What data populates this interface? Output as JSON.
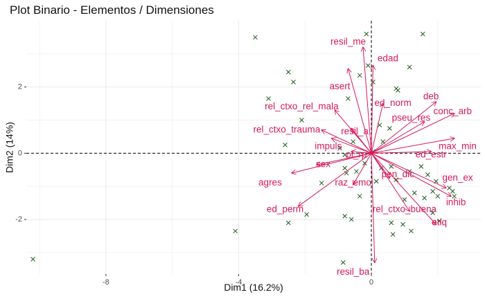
{
  "chart_data": {
    "type": "scatter",
    "title": "Plot Binario - Elementos / Dimensiones",
    "xlabel": "Dim1 (16.2%)",
    "ylabel": "Dim2 (14%)",
    "xlim": [
      -10.4,
      3.3
    ],
    "ylim": [
      -3.65,
      4.0
    ],
    "x_ticks": [
      -8,
      -4,
      0
    ],
    "y_ticks": [
      -2,
      0,
      2
    ],
    "grid": true,
    "reference_lines": {
      "x": 0,
      "y": 0,
      "style": "dashed"
    },
    "colors": {
      "points": "#1a5c1a",
      "arrows": "#d6185a",
      "grid": "#ebebeb",
      "reference": "#000000"
    },
    "individuals": [
      {
        "x": -10.2,
        "y": -3.2
      },
      {
        "x": -4.1,
        "y": -2.35
      },
      {
        "x": -3.5,
        "y": 3.5
      },
      {
        "x": -2.5,
        "y": 2.45
      },
      {
        "x": -2.35,
        "y": 2.15
      },
      {
        "x": -3.1,
        "y": 1.65
      },
      {
        "x": -2.1,
        "y": 1.0
      },
      {
        "x": -2.6,
        "y": 0.25
      },
      {
        "x": -2.5,
        "y": -2.1
      },
      {
        "x": -1.95,
        "y": -1.85
      },
      {
        "x": -1.5,
        "y": -0.9
      },
      {
        "x": -0.8,
        "y": -0.45
      },
      {
        "x": -0.35,
        "y": 2.35
      },
      {
        "x": -0.7,
        "y": 1.65
      },
      {
        "x": -0.15,
        "y": 3.6
      },
      {
        "x": -0.1,
        "y": 2.65
      },
      {
        "x": 0.05,
        "y": 2.15
      },
      {
        "x": 0.75,
        "y": 1.95
      },
      {
        "x": 0.8,
        "y": 1.9
      },
      {
        "x": 1.15,
        "y": 2.6
      },
      {
        "x": 1.55,
        "y": 3.6
      },
      {
        "x": -0.8,
        "y": -0.05
      },
      {
        "x": -0.55,
        "y": 0.35
      },
      {
        "x": -0.95,
        "y": 0.15
      },
      {
        "x": -0.2,
        "y": -0.3
      },
      {
        "x": -0.45,
        "y": -0.55
      },
      {
        "x": -0.75,
        "y": -0.6
      },
      {
        "x": -0.35,
        "y": -1.3
      },
      {
        "x": -0.8,
        "y": -1.9
      },
      {
        "x": -0.6,
        "y": -2.0
      },
      {
        "x": -0.85,
        "y": -3.3
      },
      {
        "x": 0.3,
        "y": -0.45
      },
      {
        "x": 0.6,
        "y": -0.4
      },
      {
        "x": 0.75,
        "y": -0.8
      },
      {
        "x": 1.15,
        "y": -0.55
      },
      {
        "x": 1.5,
        "y": -0.4
      },
      {
        "x": 1.3,
        "y": -1.2
      },
      {
        "x": 1.7,
        "y": -0.65
      },
      {
        "x": 1.95,
        "y": -0.85
      },
      {
        "x": 1.0,
        "y": -1.4
      },
      {
        "x": 1.6,
        "y": -1.35
      },
      {
        "x": 1.85,
        "y": -1.15
      },
      {
        "x": 2.0,
        "y": -1.3
      },
      {
        "x": 2.45,
        "y": -1.15
      },
      {
        "x": 2.35,
        "y": -1.05
      },
      {
        "x": 2.05,
        "y": -2.05
      },
      {
        "x": 1.85,
        "y": -1.8
      },
      {
        "x": 0.95,
        "y": -2.15
      },
      {
        "x": 0.6,
        "y": -2.1
      },
      {
        "x": 1.2,
        "y": -2.35
      },
      {
        "x": 0.65,
        "y": -2.45
      },
      {
        "x": 0.15,
        "y": -0.85
      },
      {
        "x": 0.25,
        "y": 0.85
      },
      {
        "x": 0.55,
        "y": 0.75
      },
      {
        "x": 0.35,
        "y": 0.35
      },
      {
        "x": 0.05,
        "y": 0.05
      },
      {
        "x": 2.5,
        "y": -1.3
      }
    ],
    "variables": [
      {
        "name": "resil_me",
        "x": -0.25,
        "y": 3.2,
        "label_x": -0.7,
        "label_y": 3.35
      },
      {
        "name": "edad",
        "x": 0.05,
        "y": 2.65,
        "label_x": 0.5,
        "label_y": 2.85
      },
      {
        "name": "asert",
        "x": -0.7,
        "y": 2.55,
        "label_x": -0.95,
        "label_y": 2.0
      },
      {
        "name": "ed_norm",
        "x": 0.35,
        "y": 1.5,
        "label_x": 0.65,
        "label_y": 1.5
      },
      {
        "name": "deb",
        "x": 1.95,
        "y": 1.55,
        "label_x": 1.8,
        "label_y": 1.7
      },
      {
        "name": "conc_arb",
        "x": 2.5,
        "y": 1.2,
        "label_x": 2.45,
        "label_y": 1.25
      },
      {
        "name": "pseu_res",
        "x": 1.6,
        "y": 0.95,
        "label_x": 1.2,
        "label_y": 1.05
      },
      {
        "name": "rel_ctxo_rel_mala",
        "x": -1.1,
        "y": 1.3,
        "label_x": -2.1,
        "label_y": 1.4
      },
      {
        "name": "rel_ctxo_trauma",
        "x": -1.5,
        "y": 0.7,
        "label_x": -2.55,
        "label_y": 0.7
      },
      {
        "name": "resil_a",
        "x": -0.6,
        "y": 0.75,
        "label_x": -0.5,
        "label_y": 0.65
      },
      {
        "name": "max_min",
        "x": 2.5,
        "y": 0.45,
        "label_x": 2.6,
        "label_y": 0.2
      },
      {
        "name": "ed_estr",
        "x": 1.8,
        "y": 0.05,
        "label_x": 1.8,
        "label_y": -0.05
      },
      {
        "name": "impuls",
        "x": -1.2,
        "y": 0.45,
        "label_x": -1.3,
        "label_y": 0.2
      },
      {
        "name": "pl_rp",
        "x": -0.6,
        "y": 0.05,
        "label_x": -0.45,
        "label_y": -0.05
      },
      {
        "name": "sex",
        "x": -1.65,
        "y": -0.35,
        "label_x": -1.45,
        "label_y": -0.35
      },
      {
        "name": "agres",
        "x": -2.4,
        "y": -0.6,
        "label_x": -3.05,
        "label_y": -0.9
      },
      {
        "name": "raz_emo",
        "x": -0.55,
        "y": -0.95,
        "label_x": -0.55,
        "label_y": -0.9
      },
      {
        "name": "pen_dic",
        "x": 0.55,
        "y": -0.75,
        "label_x": 0.8,
        "label_y": -0.65
      },
      {
        "name": "gen_ex",
        "x": 2.25,
        "y": -1.05,
        "label_x": 2.6,
        "label_y": -0.75
      },
      {
        "name": "inhib",
        "x": 2.4,
        "y": -1.3,
        "label_x": 2.55,
        "label_y": -1.5
      },
      {
        "name": "ed_perm",
        "x": -2.2,
        "y": -1.6,
        "label_x": -2.6,
        "label_y": -1.7
      },
      {
        "name": "rel_ctxo_buena",
        "x": 1.15,
        "y": -1.75,
        "label_x": 1.0,
        "label_y": -1.7
      },
      {
        "name": "etiq",
        "x": 1.95,
        "y": -2.15,
        "label_x": 2.05,
        "label_y": -2.1
      },
      {
        "name": "resil_ba",
        "x": 0.1,
        "y": -3.3,
        "label_x": -0.55,
        "label_y": -3.6
      }
    ]
  }
}
